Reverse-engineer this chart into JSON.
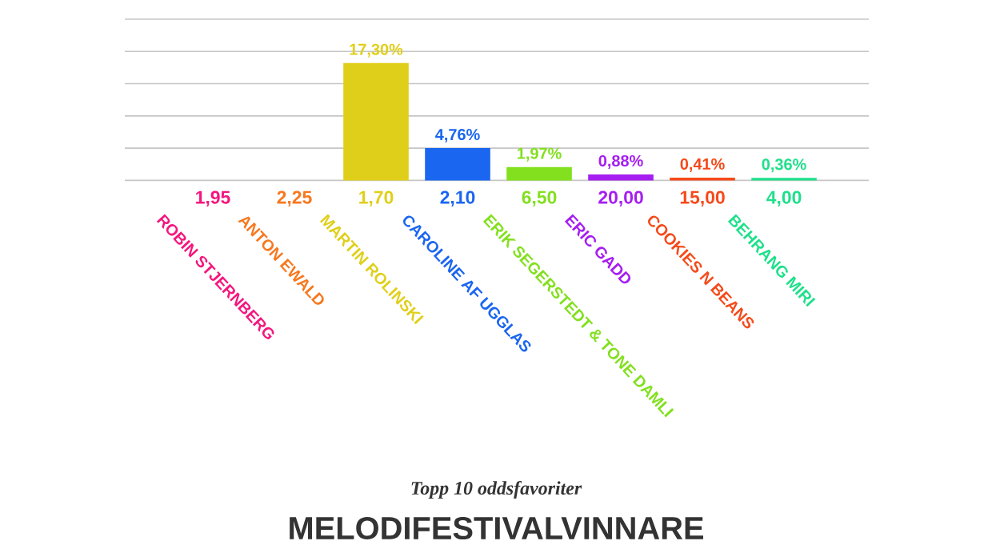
{
  "chart_data": {
    "type": "bar",
    "title": "MELODIFESTIVALVINNARE",
    "subtitle": "Topp 10 oddsfavoriter",
    "categories": [
      "ROBIN STJERNBERG",
      "ANTON EWALD",
      "MARTIN ROLINSKI",
      "CAROLINE AF UGGLAS",
      "ERIK SEGERSTEDT & TONE DAMLI",
      "ERIC GADD",
      "COOKIES N BEANS",
      "BEHRANG MIRI"
    ],
    "values": [
      null,
      null,
      17.3,
      4.76,
      1.97,
      0.88,
      0.41,
      0.36
    ],
    "value_labels": [
      null,
      null,
      "17,30%",
      "4,76%",
      "1,97%",
      "0,88%",
      "0,41%",
      "0,36%"
    ],
    "colors": [
      "#f5167e",
      "#f7781e",
      "#e0cf1a",
      "#1a66f0",
      "#82e01e",
      "#a61ef0",
      "#f54a1a",
      "#1ee08a"
    ],
    "ylim": [
      0,
      23.75
    ],
    "yticks": [
      {
        "value": 0,
        "label": null
      },
      {
        "value": 4.75,
        "label": null
      },
      {
        "value": 9.5,
        "label": null
      },
      {
        "value": 14.25,
        "label": null
      },
      {
        "value": 19,
        "label": null
      },
      {
        "value": 23.75,
        "label": null
      }
    ],
    "grid": "y",
    "annotations": [
      "1,95",
      "2,25",
      "1,70",
      "2,10",
      "6,50",
      "20,00",
      "15,00",
      "4,00"
    ]
  }
}
